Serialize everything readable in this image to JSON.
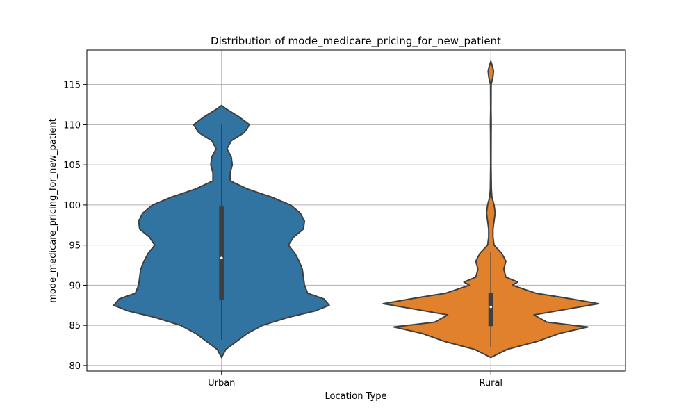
{
  "chart_data": {
    "type": "violin",
    "title": "Distribution of mode_medicare_pricing_for_new_patient",
    "xlabel": "Location Type",
    "ylabel": "mode_medicare_pricing_for_new_patient",
    "categories": [
      "Urban",
      "Rural"
    ],
    "ylim": [
      79.3,
      119.3
    ],
    "yticks": [
      80,
      85,
      90,
      95,
      100,
      105,
      110,
      115
    ],
    "grid": true,
    "colors": {
      "Urban": "#3274a1",
      "Rural": "#e1812c"
    },
    "violins": [
      {
        "category": "Urban",
        "min": 83.2,
        "q1": 88.2,
        "median": 93.4,
        "q3": 99.8,
        "max": 110.0,
        "density": [
          [
            81.0,
            0.0
          ],
          [
            82.0,
            0.04
          ],
          [
            83.0,
            0.14
          ],
          [
            84.0,
            0.24
          ],
          [
            85.0,
            0.38
          ],
          [
            86.0,
            0.62
          ],
          [
            86.8,
            0.87
          ],
          [
            87.5,
            1.0
          ],
          [
            88.3,
            0.95
          ],
          [
            89.0,
            0.8
          ],
          [
            90.0,
            0.77
          ],
          [
            91.0,
            0.76
          ],
          [
            92.0,
            0.75
          ],
          [
            93.0,
            0.72
          ],
          [
            94.0,
            0.68
          ],
          [
            95.0,
            0.62
          ],
          [
            96.0,
            0.67
          ],
          [
            97.0,
            0.76
          ],
          [
            98.0,
            0.77
          ],
          [
            99.0,
            0.73
          ],
          [
            100.0,
            0.64
          ],
          [
            101.0,
            0.46
          ],
          [
            102.0,
            0.24
          ],
          [
            103.0,
            0.08
          ],
          [
            104.0,
            0.08
          ],
          [
            105.0,
            0.1
          ],
          [
            106.0,
            0.09
          ],
          [
            107.0,
            0.05
          ],
          [
            108.0,
            0.09
          ],
          [
            109.0,
            0.21
          ],
          [
            110.0,
            0.26
          ],
          [
            111.0,
            0.16
          ],
          [
            112.0,
            0.04
          ],
          [
            112.4,
            0.0
          ]
        ]
      },
      {
        "category": "Rural",
        "min": 82.3,
        "q1": 84.9,
        "median": 87.3,
        "q3": 89.0,
        "max": 94.2,
        "density": [
          [
            81.0,
            0.0
          ],
          [
            82.0,
            0.15
          ],
          [
            83.0,
            0.43
          ],
          [
            84.0,
            0.64
          ],
          [
            84.8,
            0.9
          ],
          [
            85.4,
            0.52
          ],
          [
            86.3,
            0.4
          ],
          [
            87.0,
            0.7
          ],
          [
            87.7,
            1.0
          ],
          [
            88.4,
            0.7
          ],
          [
            89.0,
            0.42
          ],
          [
            90.0,
            0.2
          ],
          [
            90.4,
            0.25
          ],
          [
            91.0,
            0.14
          ],
          [
            92.0,
            0.12
          ],
          [
            93.0,
            0.14
          ],
          [
            94.0,
            0.1
          ],
          [
            95.0,
            0.03
          ],
          [
            96.0,
            0.02
          ],
          [
            97.0,
            0.02
          ],
          [
            98.0,
            0.03
          ],
          [
            99.0,
            0.04
          ],
          [
            100.0,
            0.03
          ],
          [
            101.0,
            0.01
          ],
          [
            102.0,
            0.005
          ],
          [
            105.0,
            0.002
          ],
          [
            109.0,
            0.003
          ],
          [
            110.0,
            0.004
          ],
          [
            112.0,
            0.002
          ],
          [
            115.0,
            0.003
          ],
          [
            116.0,
            0.02
          ],
          [
            116.7,
            0.025
          ],
          [
            117.5,
            0.01
          ],
          [
            117.9,
            0.0
          ]
        ]
      }
    ]
  }
}
